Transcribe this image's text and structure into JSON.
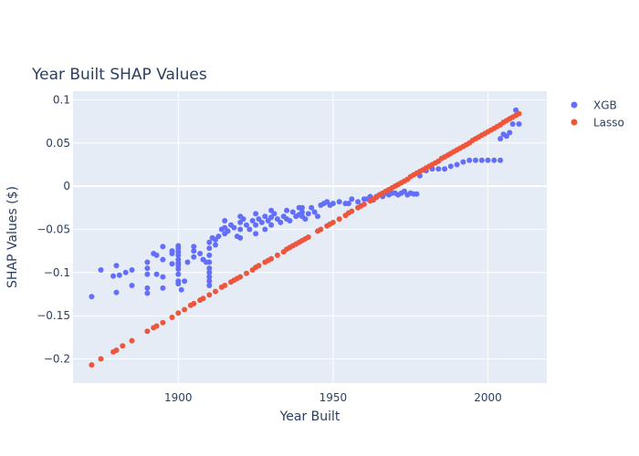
{
  "chart_data": {
    "type": "scatter",
    "title": "Year Built SHAP Values",
    "xlabel": "Year Built",
    "ylabel": "SHAP Values ($)",
    "xlim": [
      1866,
      2019
    ],
    "ylim": [
      -0.228,
      0.11
    ],
    "xticks": [
      1900,
      1950,
      2000
    ],
    "yticks": [
      -0.2,
      -0.15,
      -0.1,
      -0.05,
      0,
      0.05,
      0.1
    ],
    "ytick_labels": [
      "−0.2",
      "−0.15",
      "−0.1",
      "−0.05",
      "0",
      "0.05",
      "0.1"
    ],
    "grid": true,
    "legend_position": "top-right",
    "series": [
      {
        "name": "XGB",
        "color": "#636efa",
        "points": [
          [
            1872,
            -0.128
          ],
          [
            1875,
            -0.097
          ],
          [
            1879,
            -0.104
          ],
          [
            1880,
            -0.092
          ],
          [
            1880,
            -0.123
          ],
          [
            1881,
            -0.103
          ],
          [
            1883,
            -0.1
          ],
          [
            1885,
            -0.097
          ],
          [
            1885,
            -0.115
          ],
          [
            1890,
            -0.088
          ],
          [
            1890,
            -0.095
          ],
          [
            1890,
            -0.102
          ],
          [
            1890,
            -0.118
          ],
          [
            1890,
            -0.124
          ],
          [
            1892,
            -0.078
          ],
          [
            1893,
            -0.08
          ],
          [
            1893,
            -0.102
          ],
          [
            1895,
            -0.07
          ],
          [
            1895,
            -0.085
          ],
          [
            1895,
            -0.105
          ],
          [
            1895,
            -0.118
          ],
          [
            1898,
            -0.075
          ],
          [
            1898,
            -0.078
          ],
          [
            1898,
            -0.09
          ],
          [
            1900,
            -0.069
          ],
          [
            1900,
            -0.072
          ],
          [
            1900,
            -0.076
          ],
          [
            1900,
            -0.08
          ],
          [
            1900,
            -0.085
          ],
          [
            1900,
            -0.089
          ],
          [
            1900,
            -0.092
          ],
          [
            1900,
            -0.096
          ],
          [
            1900,
            -0.102
          ],
          [
            1900,
            -0.11
          ],
          [
            1900,
            -0.113
          ],
          [
            1901,
            -0.12
          ],
          [
            1902,
            -0.11
          ],
          [
            1903,
            -0.088
          ],
          [
            1905,
            -0.07
          ],
          [
            1905,
            -0.075
          ],
          [
            1905,
            -0.082
          ],
          [
            1907,
            -0.078
          ],
          [
            1908,
            -0.085
          ],
          [
            1909,
            -0.088
          ],
          [
            1910,
            -0.065
          ],
          [
            1910,
            -0.072
          ],
          [
            1910,
            -0.08
          ],
          [
            1910,
            -0.088
          ],
          [
            1910,
            -0.095
          ],
          [
            1910,
            -0.1
          ],
          [
            1910,
            -0.105
          ],
          [
            1910,
            -0.11
          ],
          [
            1910,
            -0.115
          ],
          [
            1911,
            -0.06
          ],
          [
            1912,
            -0.062
          ],
          [
            1912,
            -0.068
          ],
          [
            1913,
            -0.058
          ],
          [
            1914,
            -0.05
          ],
          [
            1915,
            -0.055
          ],
          [
            1915,
            -0.048
          ],
          [
            1915,
            -0.04
          ],
          [
            1916,
            -0.052
          ],
          [
            1917,
            -0.045
          ],
          [
            1918,
            -0.048
          ],
          [
            1919,
            -0.058
          ],
          [
            1920,
            -0.035
          ],
          [
            1920,
            -0.042
          ],
          [
            1920,
            -0.05
          ],
          [
            1920,
            -0.06
          ],
          [
            1921,
            -0.038
          ],
          [
            1922,
            -0.045
          ],
          [
            1923,
            -0.05
          ],
          [
            1924,
            -0.04
          ],
          [
            1925,
            -0.032
          ],
          [
            1925,
            -0.045
          ],
          [
            1925,
            -0.055
          ],
          [
            1926,
            -0.038
          ],
          [
            1927,
            -0.042
          ],
          [
            1928,
            -0.035
          ],
          [
            1928,
            -0.05
          ],
          [
            1929,
            -0.04
          ],
          [
            1930,
            -0.028
          ],
          [
            1930,
            -0.036
          ],
          [
            1930,
            -0.045
          ],
          [
            1931,
            -0.032
          ],
          [
            1932,
            -0.038
          ],
          [
            1933,
            -0.042
          ],
          [
            1934,
            -0.035
          ],
          [
            1935,
            -0.028
          ],
          [
            1935,
            -0.038
          ],
          [
            1936,
            -0.04
          ],
          [
            1937,
            -0.03
          ],
          [
            1938,
            -0.035
          ],
          [
            1939,
            -0.025
          ],
          [
            1939,
            -0.033
          ],
          [
            1940,
            -0.025
          ],
          [
            1940,
            -0.03
          ],
          [
            1940,
            -0.035
          ],
          [
            1941,
            -0.038
          ],
          [
            1942,
            -0.032
          ],
          [
            1943,
            -0.025
          ],
          [
            1944,
            -0.03
          ],
          [
            1945,
            -0.035
          ],
          [
            1946,
            -0.022
          ],
          [
            1947,
            -0.02
          ],
          [
            1948,
            -0.018
          ],
          [
            1949,
            -0.022
          ],
          [
            1950,
            -0.02
          ],
          [
            1952,
            -0.018
          ],
          [
            1954,
            -0.02
          ],
          [
            1955,
            -0.02
          ],
          [
            1956,
            -0.015
          ],
          [
            1958,
            -0.018
          ],
          [
            1960,
            -0.015
          ],
          [
            1961,
            -0.015
          ],
          [
            1962,
            -0.012
          ],
          [
            1963,
            -0.016
          ],
          [
            1964,
            -0.012
          ],
          [
            1965,
            -0.01
          ],
          [
            1966,
            -0.012
          ],
          [
            1967,
            -0.008
          ],
          [
            1968,
            -0.01
          ],
          [
            1969,
            -0.008
          ],
          [
            1970,
            -0.008
          ],
          [
            1971,
            -0.01
          ],
          [
            1972,
            -0.008
          ],
          [
            1973,
            -0.006
          ],
          [
            1974,
            -0.01
          ],
          [
            1975,
            -0.008
          ],
          [
            1976,
            -0.009
          ],
          [
            1977,
            -0.009
          ],
          [
            1978,
            0.012
          ],
          [
            1980,
            0.018
          ],
          [
            1982,
            0.02
          ],
          [
            1984,
            0.02
          ],
          [
            1986,
            0.02
          ],
          [
            1988,
            0.023
          ],
          [
            1990,
            0.025
          ],
          [
            1992,
            0.028
          ],
          [
            1994,
            0.03
          ],
          [
            1996,
            0.03
          ],
          [
            1998,
            0.03
          ],
          [
            2000,
            0.03
          ],
          [
            2002,
            0.03
          ],
          [
            2004,
            0.03
          ],
          [
            2004,
            0.055
          ],
          [
            2005,
            0.06
          ],
          [
            2006,
            0.058
          ],
          [
            2007,
            0.062
          ],
          [
            2008,
            0.072
          ],
          [
            2009,
            0.088
          ],
          [
            2010,
            0.072
          ]
        ]
      },
      {
        "name": "Lasso",
        "color": "#ef553b",
        "points": [
          [
            1872,
            -0.207
          ],
          [
            1875,
            -0.2
          ],
          [
            1879,
            -0.192
          ],
          [
            1880,
            -0.19
          ],
          [
            1882,
            -0.185
          ],
          [
            1885,
            -0.179
          ],
          [
            1890,
            -0.168
          ],
          [
            1892,
            -0.164
          ],
          [
            1893,
            -0.162
          ],
          [
            1895,
            -0.158
          ],
          [
            1898,
            -0.152
          ],
          [
            1900,
            -0.147
          ],
          [
            1902,
            -0.143
          ],
          [
            1904,
            -0.138
          ],
          [
            1905,
            -0.136
          ],
          [
            1907,
            -0.132
          ],
          [
            1908,
            -0.13
          ],
          [
            1910,
            -0.126
          ],
          [
            1912,
            -0.122
          ],
          [
            1914,
            -0.117
          ],
          [
            1915,
            -0.115
          ],
          [
            1917,
            -0.111
          ],
          [
            1918,
            -0.109
          ],
          [
            1919,
            -0.107
          ],
          [
            1920,
            -0.105
          ],
          [
            1922,
            -0.101
          ],
          [
            1924,
            -0.097
          ],
          [
            1925,
            -0.094
          ],
          [
            1926,
            -0.092
          ],
          [
            1928,
            -0.088
          ],
          [
            1929,
            -0.086
          ],
          [
            1930,
            -0.084
          ],
          [
            1932,
            -0.08
          ],
          [
            1934,
            -0.076
          ],
          [
            1935,
            -0.073
          ],
          [
            1936,
            -0.071
          ],
          [
            1937,
            -0.069
          ],
          [
            1938,
            -0.067
          ],
          [
            1939,
            -0.065
          ],
          [
            1940,
            -0.063
          ],
          [
            1941,
            -0.061
          ],
          [
            1942,
            -0.059
          ],
          [
            1945,
            -0.052
          ],
          [
            1946,
            -0.05
          ],
          [
            1948,
            -0.046
          ],
          [
            1949,
            -0.044
          ],
          [
            1950,
            -0.042
          ],
          [
            1952,
            -0.038
          ],
          [
            1954,
            -0.034
          ],
          [
            1955,
            -0.031
          ],
          [
            1956,
            -0.029
          ],
          [
            1958,
            -0.025
          ],
          [
            1959,
            -0.023
          ],
          [
            1960,
            -0.021
          ],
          [
            1962,
            -0.017
          ],
          [
            1963,
            -0.015
          ],
          [
            1964,
            -0.013
          ],
          [
            1965,
            -0.01
          ],
          [
            1966,
            -0.008
          ],
          [
            1967,
            -0.006
          ],
          [
            1968,
            -0.004
          ],
          [
            1969,
            -0.002
          ],
          [
            1970,
            0.0
          ],
          [
            1971,
            0.002
          ],
          [
            1972,
            0.004
          ],
          [
            1973,
            0.006
          ],
          [
            1974,
            0.008
          ],
          [
            1975,
            0.011
          ],
          [
            1976,
            0.013
          ],
          [
            1977,
            0.015
          ],
          [
            1978,
            0.017
          ],
          [
            1979,
            0.019
          ],
          [
            1980,
            0.021
          ],
          [
            1981,
            0.023
          ],
          [
            1982,
            0.025
          ],
          [
            1983,
            0.027
          ],
          [
            1984,
            0.029
          ],
          [
            1985,
            0.032
          ],
          [
            1986,
            0.034
          ],
          [
            1987,
            0.036
          ],
          [
            1988,
            0.038
          ],
          [
            1989,
            0.04
          ],
          [
            1990,
            0.042
          ],
          [
            1991,
            0.044
          ],
          [
            1992,
            0.046
          ],
          [
            1993,
            0.048
          ],
          [
            1994,
            0.05
          ],
          [
            1995,
            0.053
          ],
          [
            1996,
            0.055
          ],
          [
            1997,
            0.057
          ],
          [
            1998,
            0.059
          ],
          [
            1999,
            0.061
          ],
          [
            2000,
            0.063
          ],
          [
            2001,
            0.065
          ],
          [
            2002,
            0.067
          ],
          [
            2003,
            0.069
          ],
          [
            2004,
            0.071
          ],
          [
            2005,
            0.074
          ],
          [
            2006,
            0.076
          ],
          [
            2007,
            0.078
          ],
          [
            2008,
            0.08
          ],
          [
            2009,
            0.082
          ],
          [
            2010,
            0.084
          ]
        ]
      }
    ]
  }
}
